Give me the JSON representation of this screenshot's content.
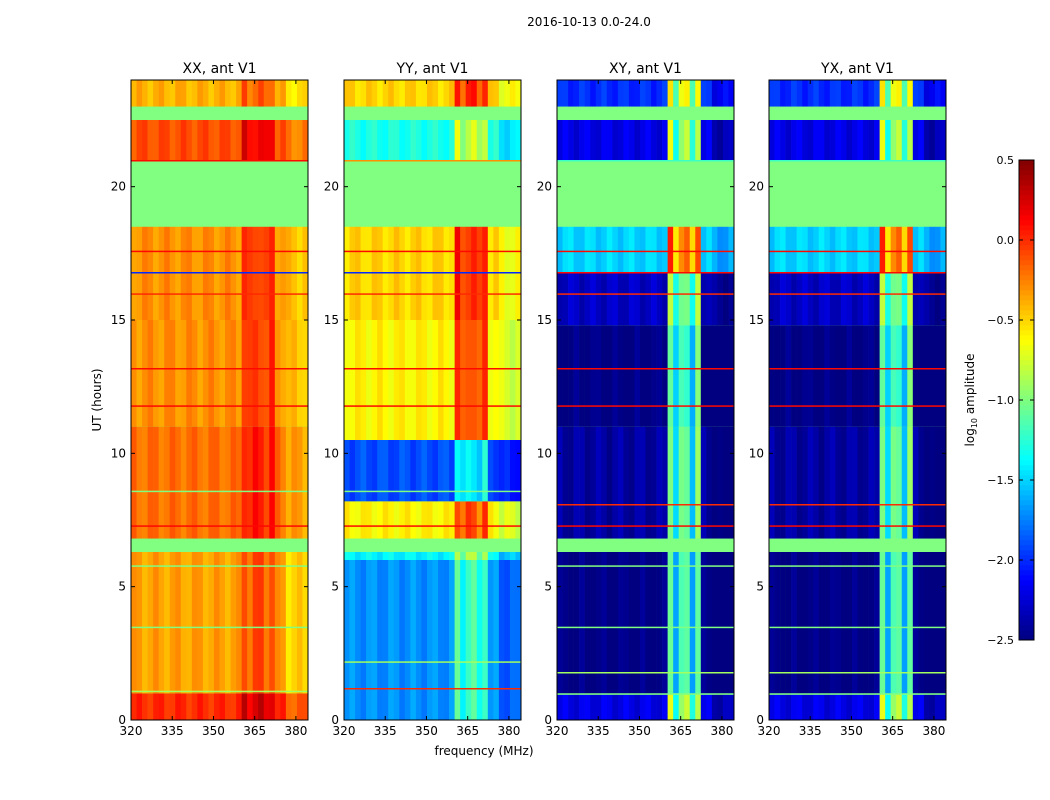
{
  "chart_data": {
    "type": "heatmap",
    "suptitle": "2016-10-13 0.0-24.0",
    "xlabel": "frequency (MHz)",
    "ylabel": "UT (hours)",
    "xlim": [
      320,
      384.4
    ],
    "ylim": [
      0,
      24
    ],
    "xticks": [
      320,
      335,
      350,
      365,
      380
    ],
    "yticks": [
      0,
      5,
      10,
      15,
      20
    ],
    "hot_band_mhz": [
      361,
      373
    ],
    "flag_value": -1.0,
    "flagged_ranges": [
      [
        6.3,
        6.8
      ],
      [
        18.5,
        21.0
      ],
      [
        22.5,
        23.0
      ]
    ],
    "colorbar": {
      "label": "log10 amplitude",
      "label_main": "log",
      "label_sub": "10",
      "label_rest": " amplitude",
      "range": [
        -2.5,
        0.5
      ],
      "ticks": [
        "0.5",
        "0.0",
        "−0.5",
        "−1.0",
        "−1.5",
        "−2.0",
        "−2.5"
      ],
      "tick_values": [
        0.5,
        0.0,
        -0.5,
        -1.0,
        -1.5,
        -2.0,
        -2.5
      ],
      "colormap": "jet"
    },
    "panels": [
      {
        "title": "XX, ant V1",
        "hot_offset": 0.3,
        "bands": [
          [
            0,
            1,
            0.0
          ],
          [
            1,
            6.3,
            -0.35
          ],
          [
            6.8,
            11,
            -0.2
          ],
          [
            11,
            15,
            -0.3
          ],
          [
            15,
            18.5,
            -0.3
          ],
          [
            21,
            22.5,
            -0.1
          ],
          [
            23,
            24,
            -0.4
          ]
        ],
        "lines": [
          [
            1.1,
            -0.9
          ],
          [
            3.5,
            -1.0
          ],
          [
            5.8,
            -1.0
          ],
          [
            7.3,
            0.1
          ],
          [
            8.6,
            -1.0
          ],
          [
            11.8,
            0.1
          ],
          [
            13.2,
            0.1
          ],
          [
            16.0,
            0.0
          ],
          [
            16.8,
            -2.0
          ],
          [
            17.6,
            0.1
          ],
          [
            21.0,
            0.1
          ]
        ]
      },
      {
        "title": "YY, ant V1",
        "hot_offset": 0.6,
        "bands": [
          [
            0,
            6.0,
            -1.7
          ],
          [
            6.0,
            6.3,
            -1.4
          ],
          [
            6.8,
            8.2,
            -0.6
          ],
          [
            8.2,
            10.5,
            -1.9
          ],
          [
            10.5,
            15,
            -0.6
          ],
          [
            15,
            18.5,
            -0.5
          ],
          [
            21,
            22.5,
            -1.3
          ],
          [
            23,
            24,
            -0.5
          ]
        ],
        "lines": [
          [
            1.2,
            0.0
          ],
          [
            2.2,
            -0.9
          ],
          [
            7.3,
            0.1
          ],
          [
            8.6,
            -1.0
          ],
          [
            11.8,
            0.1
          ],
          [
            13.2,
            0.1
          ],
          [
            16.0,
            0.0
          ],
          [
            16.8,
            -2.0
          ],
          [
            17.6,
            0.1
          ],
          [
            21.0,
            -0.3
          ]
        ]
      },
      {
        "title": "XY, ant V1",
        "hot_offset": 1.5,
        "bands": [
          [
            0,
            1,
            -2.2
          ],
          [
            1,
            6.3,
            -2.5
          ],
          [
            6.8,
            11,
            -2.4
          ],
          [
            11,
            14.8,
            -2.5
          ],
          [
            14.8,
            16.8,
            -2.3
          ],
          [
            16.8,
            18.5,
            -1.5
          ],
          [
            21,
            22.5,
            -2.2
          ],
          [
            23,
            24,
            -2.0
          ]
        ],
        "lines": [
          [
            1.0,
            -1.0
          ],
          [
            1.8,
            -0.9
          ],
          [
            3.5,
            -1.0
          ],
          [
            5.8,
            -1.0
          ],
          [
            7.3,
            0.1
          ],
          [
            8.1,
            0.0
          ],
          [
            11.8,
            0.1
          ],
          [
            13.2,
            0.1
          ],
          [
            16.0,
            0.0
          ],
          [
            16.8,
            0.1
          ],
          [
            17.6,
            0.1
          ],
          [
            21.0,
            -1.2
          ]
        ]
      },
      {
        "title": "YX, ant V1",
        "hot_offset": 1.5,
        "bands": [
          [
            0,
            1,
            -2.2
          ],
          [
            1,
            6.3,
            -2.5
          ],
          [
            6.8,
            11,
            -2.4
          ],
          [
            11,
            14.8,
            -2.5
          ],
          [
            14.8,
            16.8,
            -2.3
          ],
          [
            16.8,
            18.5,
            -1.5
          ],
          [
            21,
            22.5,
            -2.2
          ],
          [
            23,
            24,
            -2.0
          ]
        ],
        "lines": [
          [
            1.0,
            -1.0
          ],
          [
            1.8,
            -0.9
          ],
          [
            3.5,
            -1.0
          ],
          [
            5.8,
            -1.0
          ],
          [
            7.3,
            0.1
          ],
          [
            8.1,
            0.0
          ],
          [
            11.8,
            0.1
          ],
          [
            13.2,
            0.1
          ],
          [
            16.0,
            0.0
          ],
          [
            16.8,
            0.1
          ],
          [
            17.6,
            0.1
          ],
          [
            21.0,
            -1.2
          ]
        ]
      }
    ]
  }
}
